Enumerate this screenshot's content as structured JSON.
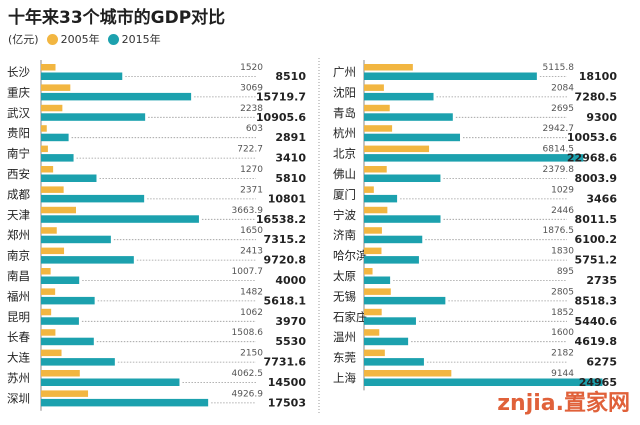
{
  "chart_data": {
    "type": "bar",
    "orientation": "horizontal",
    "title": "十年来33个城市的GDP对比",
    "unit": "(亿元)",
    "series_names": [
      "2005年",
      "2015年"
    ],
    "colors": {
      "y2005": "#f2b641",
      "y2015": "#1ca1ae",
      "text": "#222222",
      "grid": "#999999"
    },
    "left_panel": [
      {
        "city": "长沙",
        "v2005": 1520,
        "l2005": "1520",
        "v2015": 8510,
        "l2015": "8510"
      },
      {
        "city": "重庆",
        "v2005": 3069,
        "l2005": "3069",
        "v2015": 15719.7,
        "l2015": "15719.7"
      },
      {
        "city": "武汉",
        "v2005": 2238,
        "l2005": "2238",
        "v2015": 10905.6,
        "l2015": "10905.6"
      },
      {
        "city": "贵阳",
        "v2005": 603,
        "l2005": "603",
        "v2015": 2891,
        "l2015": "2891"
      },
      {
        "city": "南宁",
        "v2005": 722.7,
        "l2005": "722.7",
        "v2015": 3410,
        "l2015": "3410"
      },
      {
        "city": "西安",
        "v2005": 1270,
        "l2005": "1270",
        "v2015": 5810,
        "l2015": "5810"
      },
      {
        "city": "成都",
        "v2005": 2371,
        "l2005": "2371",
        "v2015": 10801,
        "l2015": "10801"
      },
      {
        "city": "天津",
        "v2005": 3663.9,
        "l2005": "3663.9",
        "v2015": 16538.2,
        "l2015": "16538.2"
      },
      {
        "city": "郑州",
        "v2005": 1650,
        "l2005": "1650",
        "v2015": 7315.2,
        "l2015": "7315.2"
      },
      {
        "city": "南京",
        "v2005": 2413,
        "l2005": "2413",
        "v2015": 9720.8,
        "l2015": "9720.8"
      },
      {
        "city": "南昌",
        "v2005": 1007.7,
        "l2005": "1007.7",
        "v2015": 4000,
        "l2015": "4000"
      },
      {
        "city": "福州",
        "v2005": 1482,
        "l2005": "1482",
        "v2015": 5618.1,
        "l2015": "5618.1"
      },
      {
        "city": "昆明",
        "v2005": 1062,
        "l2005": "1062",
        "v2015": 3970,
        "l2015": "3970"
      },
      {
        "city": "长春",
        "v2005": 1508.6,
        "l2005": "1508.6",
        "v2015": 5530,
        "l2015": "5530"
      },
      {
        "city": "大连",
        "v2005": 2150,
        "l2005": "2150",
        "v2015": 7731.6,
        "l2015": "7731.6"
      },
      {
        "city": "苏州",
        "v2005": 4062.5,
        "l2005": "4062.5",
        "v2015": 14500,
        "l2015": "14500"
      },
      {
        "city": "深圳",
        "v2005": 4926.9,
        "l2005": "4926.9",
        "v2015": 17503,
        "l2015": "17503"
      }
    ],
    "right_panel": [
      {
        "city": "广州",
        "v2005": 5115.8,
        "l2005": "5115.8",
        "v2015": 18100,
        "l2015": "18100"
      },
      {
        "city": "沈阳",
        "v2005": 2084,
        "l2005": "2084",
        "v2015": 7280.5,
        "l2015": "7280.5"
      },
      {
        "city": "青岛",
        "v2005": 2695,
        "l2005": "2695",
        "v2015": 9300,
        "l2015": "9300"
      },
      {
        "city": "杭州",
        "v2005": 2942.7,
        "l2005": "2942.7",
        "v2015": 10053.6,
        "l2015": "10053.6"
      },
      {
        "city": "北京",
        "v2005": 6814.5,
        "l2005": "6814.5",
        "v2015": 22968.6,
        "l2015": "22968.6"
      },
      {
        "city": "佛山",
        "v2005": 2379.8,
        "l2005": "2379.8",
        "v2015": 8003.9,
        "l2015": "8003.9"
      },
      {
        "city": "厦门",
        "v2005": 1029,
        "l2005": "1029",
        "v2015": 3466,
        "l2015": "3466"
      },
      {
        "city": "宁波",
        "v2005": 2446,
        "l2005": "2446",
        "v2015": 8011.5,
        "l2015": "8011.5"
      },
      {
        "city": "济南",
        "v2005": 1876.5,
        "l2005": "1876.5",
        "v2015": 6100.2,
        "l2015": "6100.2"
      },
      {
        "city": "哈尔滨",
        "v2005": 1830,
        "l2005": "1830",
        "v2015": 5751.2,
        "l2015": "5751.2"
      },
      {
        "city": "太原",
        "v2005": 895,
        "l2005": "895",
        "v2015": 2735,
        "l2015": "2735"
      },
      {
        "city": "无锡",
        "v2005": 2805,
        "l2005": "2805",
        "v2015": 8518.3,
        "l2015": "8518.3"
      },
      {
        "city": "石家庄",
        "v2005": 1852,
        "l2005": "1852",
        "v2015": 5440.6,
        "l2015": "5440.6"
      },
      {
        "city": "温州",
        "v2005": 1600,
        "l2005": "1600",
        "v2015": 4619.8,
        "l2015": "4619.8"
      },
      {
        "city": "东莞",
        "v2005": 2182,
        "l2005": "2182",
        "v2015": 6275,
        "l2015": "6275"
      },
      {
        "city": "上海",
        "v2005": 9144,
        "l2005": "9144",
        "v2015": 24965,
        "l2015": "24965"
      }
    ]
  },
  "watermark": "znjia.置家网"
}
